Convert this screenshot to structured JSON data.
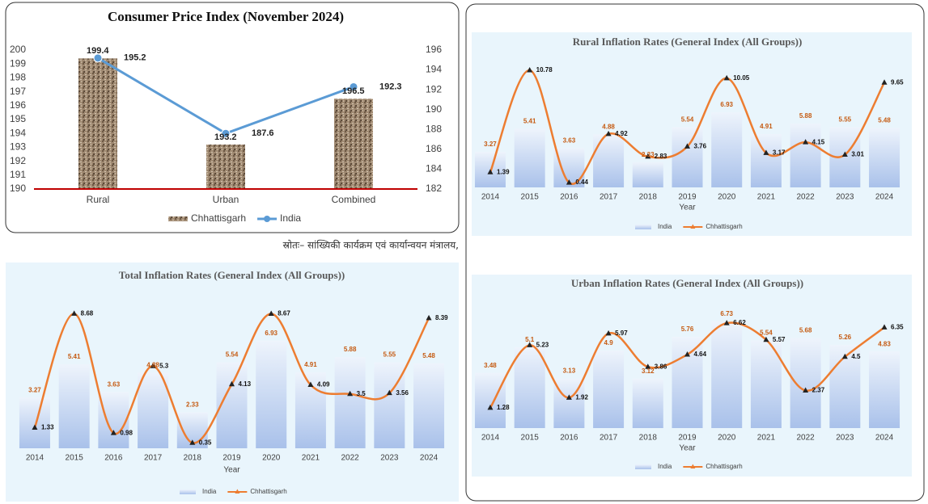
{
  "chart_data": [
    {
      "type": "combo",
      "title": "Consumer Price Index (November 2024)",
      "categories": [
        "Rural",
        "Urban",
        "Combined"
      ],
      "series": [
        {
          "name": "Chhattisgarh",
          "type": "bar",
          "texture": true,
          "color": "#8b7355",
          "label_color": "#222222",
          "values": [
            199.4,
            193.2,
            196.5
          ]
        },
        {
          "name": "India",
          "type": "line",
          "axis": "y2",
          "marker": "circle",
          "color": "#5b9bd5",
          "label_color": "#222222",
          "values": [
            195.2,
            187.6,
            192.3
          ]
        }
      ],
      "ylim": [
        190,
        200
      ],
      "yticks": [
        190,
        191,
        192,
        193,
        194,
        195,
        196,
        197,
        198,
        199,
        200
      ],
      "y2lim": [
        182,
        196
      ],
      "y2ticks": [
        182,
        184,
        186,
        188,
        190,
        192,
        194,
        196
      ],
      "baseline_color": "#c00000"
    },
    {
      "type": "combo",
      "title": "Total Inflation Rates (General Index (All Groups))",
      "xlabel": "Year",
      "categories": [
        "2014",
        "2015",
        "2016",
        "2017",
        "2018",
        "2019",
        "2020",
        "2021",
        "2022",
        "2023",
        "2024"
      ],
      "series": [
        {
          "name": "India",
          "type": "bar",
          "gradient": true,
          "color": "#b4c7e7",
          "label_color": "#c55a11",
          "values": [
            3.27,
            5.41,
            3.63,
            4.88,
            2.33,
            5.54,
            6.93,
            4.91,
            5.88,
            5.55,
            5.48
          ]
        },
        {
          "name": "Chhattisgarh",
          "type": "line",
          "smooth": true,
          "marker": "triangle",
          "color": "#ed7d31",
          "label_color": "#111111",
          "values": [
            1.33,
            8.68,
            0.98,
            5.3,
            0.35,
            4.13,
            8.67,
            4.09,
            3.5,
            3.56,
            8.39
          ]
        }
      ],
      "ylim": [
        0,
        10
      ]
    },
    {
      "type": "combo",
      "title": "Rural Inflation Rates (General Index (All Groups))",
      "xlabel": "Year",
      "categories": [
        "2014",
        "2015",
        "2016",
        "2017",
        "2018",
        "2019",
        "2020",
        "2021",
        "2022",
        "2023",
        "2024"
      ],
      "series": [
        {
          "name": "India",
          "type": "bar",
          "gradient": true,
          "color": "#b4c7e7",
          "label_color": "#c55a11",
          "values": [
            3.27,
            5.41,
            3.63,
            4.88,
            2.33,
            5.54,
            6.93,
            4.91,
            5.88,
            5.55,
            5.48
          ]
        },
        {
          "name": "Chhattisgarh",
          "type": "line",
          "smooth": true,
          "marker": "triangle",
          "color": "#ed7d31",
          "label_color": "#111111",
          "values": [
            1.39,
            10.78,
            0.44,
            4.92,
            2.83,
            3.76,
            10.05,
            3.17,
            4.15,
            3.01,
            9.65
          ]
        }
      ],
      "ylim": [
        0,
        12
      ]
    },
    {
      "type": "combo",
      "title": "Urban Inflation Rates (General Index (All Groups))",
      "xlabel": "Year",
      "categories": [
        "2014",
        "2015",
        "2016",
        "2017",
        "2018",
        "2019",
        "2020",
        "2021",
        "2022",
        "2023",
        "2024"
      ],
      "series": [
        {
          "name": "India",
          "type": "bar",
          "gradient": true,
          "color": "#b4c7e7",
          "label_color": "#c55a11",
          "values": [
            3.48,
            5.1,
            3.13,
            4.9,
            3.12,
            5.76,
            6.73,
            5.54,
            5.68,
            5.26,
            4.83
          ]
        },
        {
          "name": "Chhattisgarh",
          "type": "line",
          "smooth": true,
          "marker": "triangle",
          "color": "#ed7d31",
          "label_color": "#111111",
          "values": [
            1.28,
            5.23,
            1.92,
            5.97,
            3.86,
            4.64,
            6.62,
            5.57,
            2.37,
            4.5,
            6.35
          ]
        }
      ],
      "ylim": [
        0,
        8
      ]
    }
  ],
  "source": "स्रोतः– सांख्यिकी कार्यक्रम एवं कार्यान्वयन मंत्रालय,"
}
